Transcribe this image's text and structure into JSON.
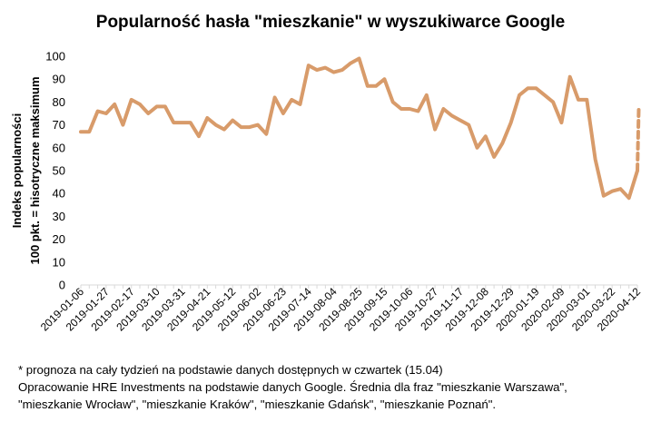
{
  "chart_data": {
    "type": "line",
    "title": "Popularność hasła \"mieszkanie\" w wyszukiwarce Google",
    "ylabel_line1": "Indeks popularności",
    "ylabel_line2": "100 pkt. = hisotryczne maksimum",
    "xlabel": "",
    "ylim": [
      0,
      100
    ],
    "yticks": [
      0,
      10,
      20,
      30,
      40,
      50,
      60,
      70,
      80,
      90,
      100
    ],
    "grid": false,
    "legend": "none",
    "line_color": "#D89B6A",
    "x": [
      "2019-01-06",
      "2019-01-13",
      "2019-01-20",
      "2019-01-27",
      "2019-02-03",
      "2019-02-10",
      "2019-02-17",
      "2019-02-24",
      "2019-03-03",
      "2019-03-10",
      "2019-03-17",
      "2019-03-24",
      "2019-03-31",
      "2019-04-07",
      "2019-04-14",
      "2019-04-21",
      "2019-04-28",
      "2019-05-05",
      "2019-05-12",
      "2019-05-19",
      "2019-05-26",
      "2019-06-02",
      "2019-06-09",
      "2019-06-16",
      "2019-06-23",
      "2019-06-30",
      "2019-07-07",
      "2019-07-14",
      "2019-07-21",
      "2019-07-28",
      "2019-08-04",
      "2019-08-11",
      "2019-08-18",
      "2019-08-25",
      "2019-09-01",
      "2019-09-08",
      "2019-09-15",
      "2019-09-22",
      "2019-09-29",
      "2019-10-06",
      "2019-10-13",
      "2019-10-20",
      "2019-10-27",
      "2019-11-03",
      "2019-11-10",
      "2019-11-17",
      "2019-11-24",
      "2019-12-01",
      "2019-12-08",
      "2019-12-15",
      "2019-12-22",
      "2019-12-29",
      "2020-01-05",
      "2020-01-12",
      "2020-01-19",
      "2020-01-26",
      "2020-02-02",
      "2020-02-09",
      "2020-02-16",
      "2020-02-23",
      "2020-03-01",
      "2020-03-08",
      "2020-03-15",
      "2020-03-22",
      "2020-03-29",
      "2020-04-05",
      "2020-04-12"
    ],
    "xtick_labels": [
      "2019-01-06",
      "2019-01-27",
      "2019-02-17",
      "2019-03-10",
      "2019-03-31",
      "2019-04-21",
      "2019-05-12",
      "2019-06-02",
      "2019-06-23",
      "2019-07-14",
      "2019-08-04",
      "2019-08-25",
      "2019-09-15",
      "2019-10-06",
      "2019-10-27",
      "2019-11-17",
      "2019-12-08",
      "2019-12-29",
      "2020-01-19",
      "2020-02-09",
      "2020-03-01",
      "2020-03-22",
      "2020-04-12"
    ],
    "series": [
      {
        "values": [
          67,
          67,
          76,
          75,
          79,
          70,
          81,
          79,
          75,
          78,
          78,
          71,
          71,
          71,
          65,
          73,
          70,
          68,
          72,
          69,
          69,
          70,
          66,
          82,
          75,
          81,
          79,
          96,
          94,
          95,
          93,
          94,
          97,
          99,
          87,
          87,
          90,
          80,
          77,
          77,
          76,
          83,
          68,
          77,
          74,
          72,
          70,
          60,
          65,
          56,
          62,
          71,
          83,
          86,
          86,
          83,
          80,
          71,
          91,
          81,
          81,
          55,
          39,
          41,
          42,
          38,
          50
        ],
        "forecast_end": [
          50,
          77
        ]
      }
    ]
  },
  "footnotes": {
    "line1": "* prognoza na cały tydzień na podstawie danych dostępnych w czwartek (15.04)",
    "line2": "Opracowanie HRE Investments na podstawie danych Google. Średnia dla fraz \"mieszkanie Warszawa\",",
    "line3": "\"mieszkanie Wrocław\", \"mieszkanie Kraków\", \"mieszkanie Gdańsk\", \"mieszkanie Poznań\"."
  }
}
